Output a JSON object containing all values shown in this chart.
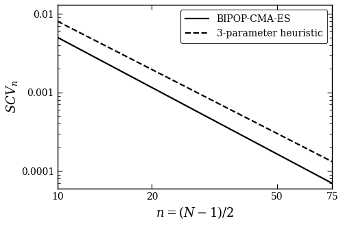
{
  "title": "",
  "xlabel": "$n = (N-1)/2$",
  "ylabel": "$SCV_n$",
  "xlim": [
    10,
    75
  ],
  "ylim": [
    6e-05,
    0.013
  ],
  "xticks": [
    10,
    20,
    50,
    75
  ],
  "yticks": [
    0.0001,
    0.001,
    0.01
  ],
  "ytick_labels": [
    "0.0001",
    "0.001",
    "0.01"
  ],
  "solid_label": "BIPOP-CMA-ES",
  "dashed_label": "3-parameter heuristic",
  "solid_color": "#000000",
  "dashed_color": "#000000",
  "solid_coeff": 0.66,
  "solid_exp": -2.12,
  "dashed_coeff": 0.88,
  "dashed_exp": -2.04,
  "line_width": 1.6,
  "figsize": [
    5.0,
    3.28
  ],
  "dpi": 100
}
